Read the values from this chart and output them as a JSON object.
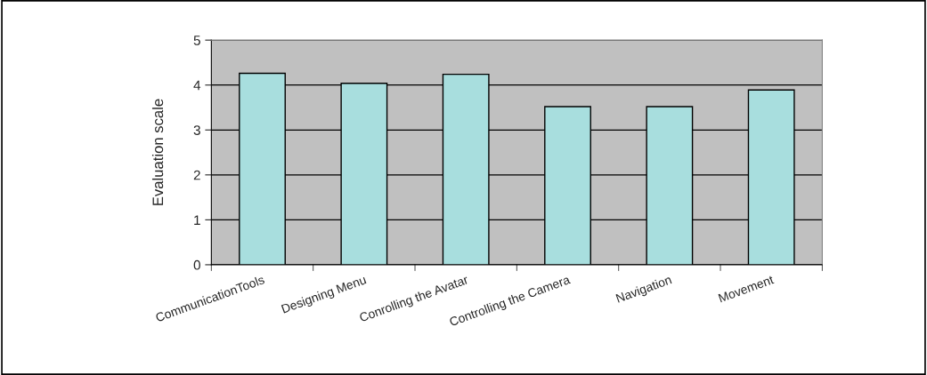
{
  "chart_data": {
    "type": "bar",
    "ylabel": "Evaluation scale",
    "categories": [
      "CommunicationTools",
      "Designing Menu",
      "Conrolling the Avatar",
      "Controlling the Camera",
      "Navigation",
      "Movement"
    ],
    "values": [
      4.26,
      4.04,
      4.24,
      3.52,
      3.52,
      3.89
    ],
    "color": "#a8dede",
    "ylim": [
      0,
      5
    ],
    "yticks": [
      0,
      1,
      2,
      3,
      4,
      5
    ],
    "grid": "y",
    "legend": false
  }
}
